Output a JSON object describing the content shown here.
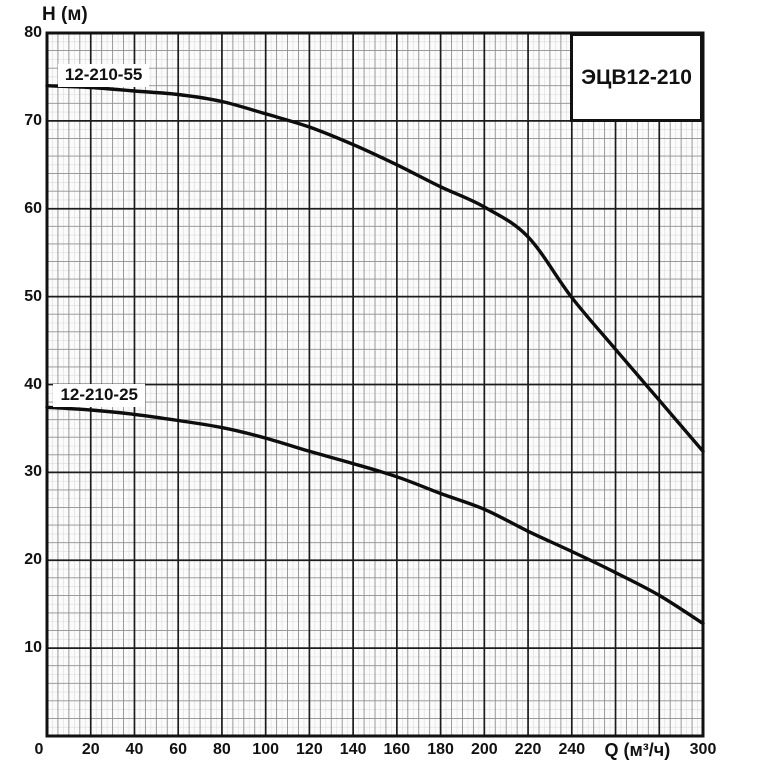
{
  "chart_data": {
    "type": "line",
    "title": "ЭЦВ12-210",
    "xlabel": "Q (м³/ч)",
    "ylabel": "H (м)",
    "xlim": [
      0,
      300
    ],
    "ylim": [
      0,
      80
    ],
    "grid": "on",
    "x_major_step": 20,
    "x_minor_step": 5,
    "x_faint_step": 2.5,
    "y_major_step": 10,
    "y_minor_step": 2,
    "y_faint_step": 1,
    "x_tick_values": [
      0,
      20,
      40,
      60,
      80,
      100,
      120,
      140,
      160,
      180,
      200,
      220,
      240,
      300
    ],
    "y_tick_values": [
      80,
      70,
      60,
      50,
      40,
      30,
      20,
      10
    ],
    "xlabel_position_q": 270,
    "x": [
      0,
      20,
      40,
      60,
      80,
      100,
      120,
      140,
      160,
      180,
      200,
      220,
      240,
      260,
      280,
      300
    ],
    "series": [
      {
        "name": "12-210-55",
        "values": [
          74,
          73.8,
          73.4,
          73,
          72.2,
          70.8,
          69.3,
          67.3,
          65,
          62.5,
          60.2,
          56.8,
          49.9,
          44,
          38.2,
          32.4
        ],
        "label_anchor": {
          "q": 26,
          "h": 75.2
        }
      },
      {
        "name": "12-210-25",
        "values": [
          37.4,
          37.1,
          36.6,
          35.9,
          35.1,
          33.9,
          32.4,
          31,
          29.5,
          27.6,
          25.8,
          23.3,
          21,
          18.6,
          16,
          12.8
        ],
        "label_anchor": {
          "q": 24,
          "h": 38.8
        }
      }
    ],
    "colors": {
      "curve": "#0d0d0d",
      "grid_major": "#1c1c1c",
      "grid_minor": "#8f8f8f",
      "grid_faint": "#dcdcdc",
      "plot_background": "#fbfbfb",
      "border": "#111111",
      "text": "#111111"
    }
  }
}
